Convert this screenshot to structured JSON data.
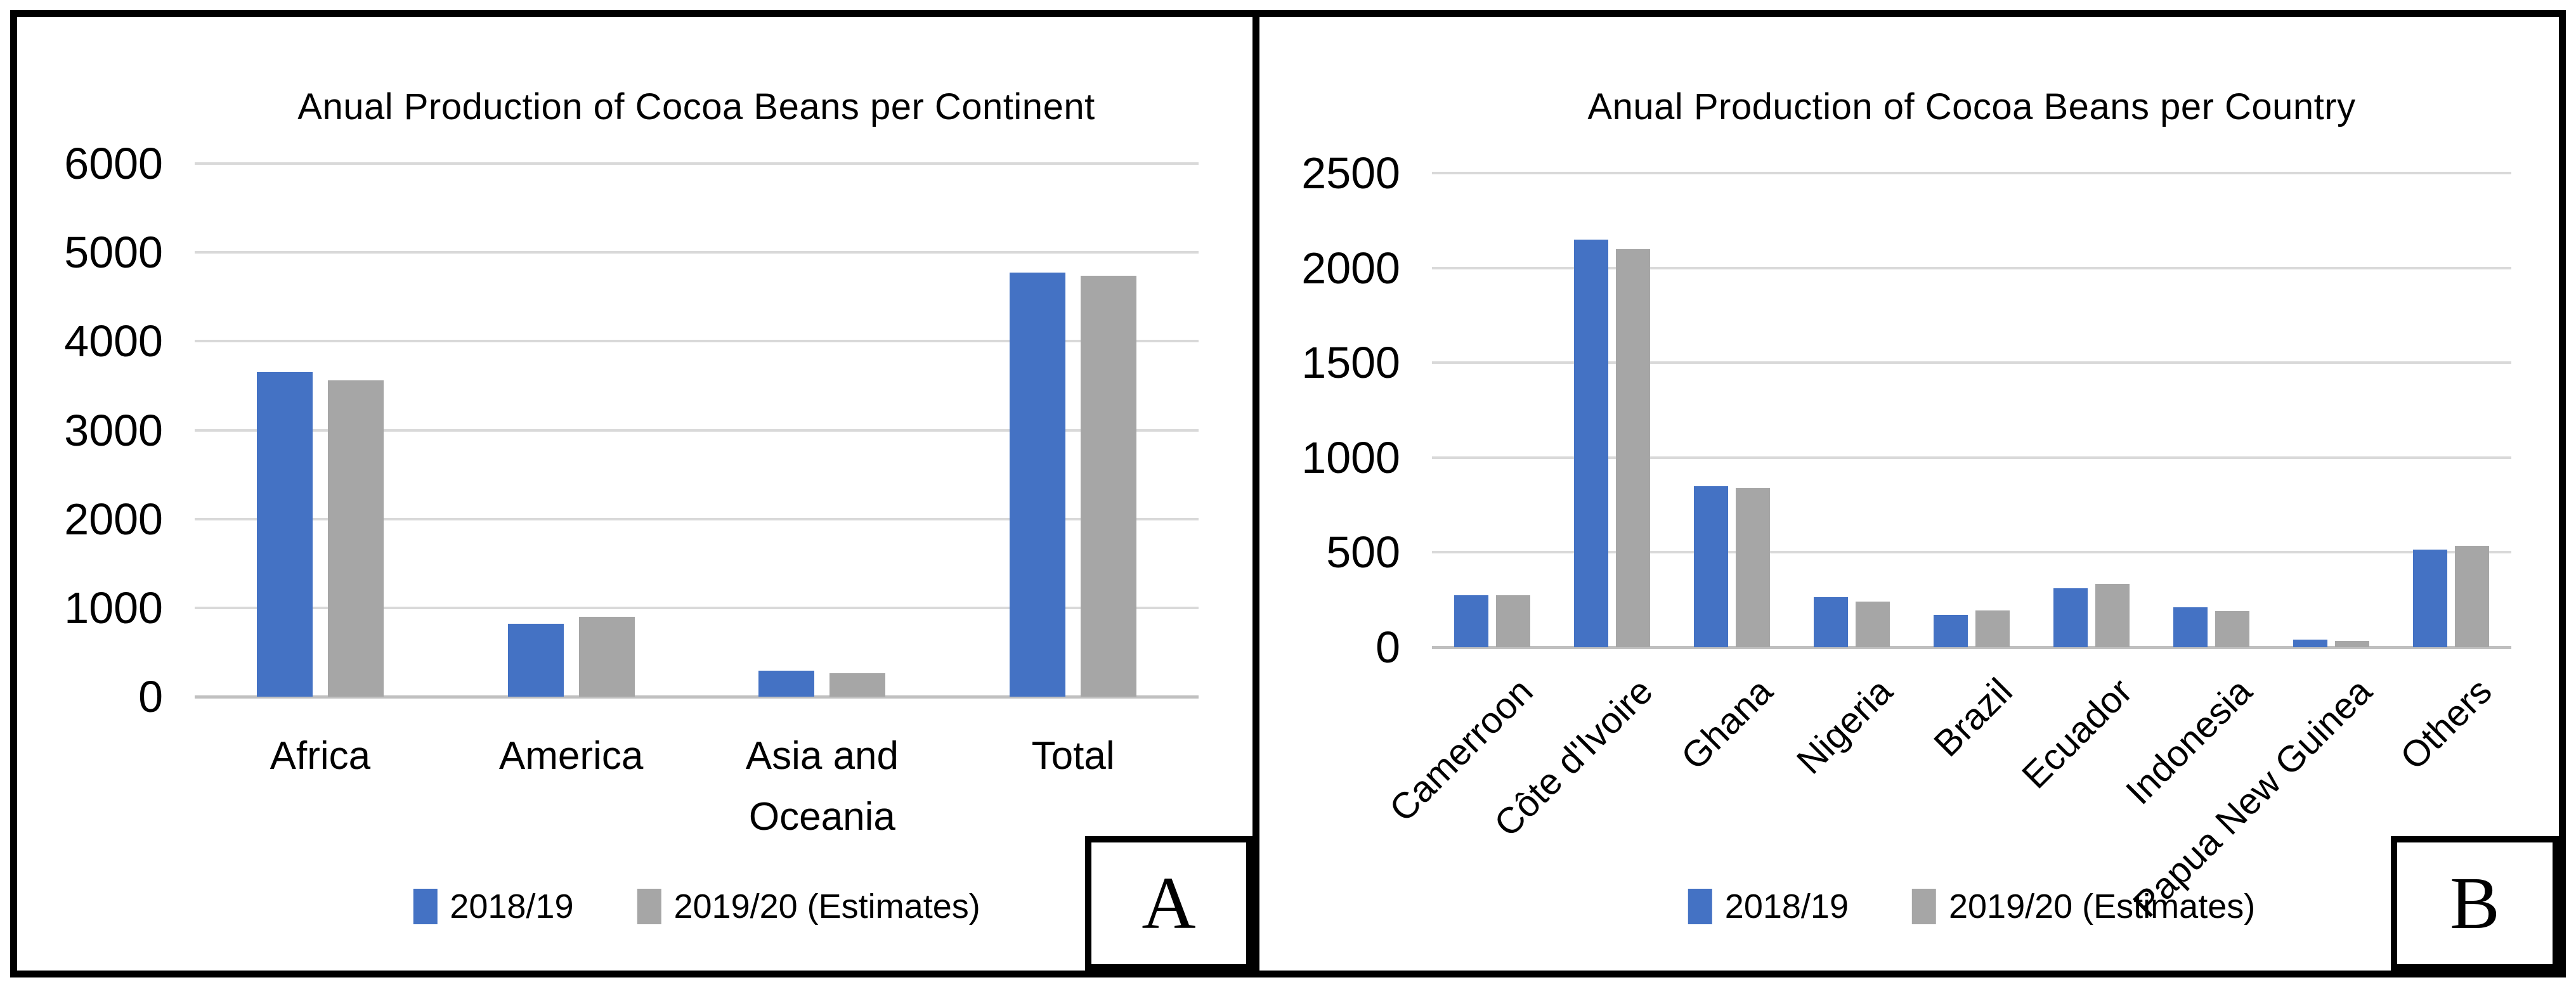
{
  "figure": {
    "background": "#ffffff",
    "border_color": "#000000",
    "gridline_color": "#d9d9d9",
    "axis_line_color": "#c0c0c0"
  },
  "chart_data": [
    {
      "type": "bar",
      "corner_label": "A",
      "title": "Anual Production of Cocoa Beans per Continent",
      "categories": [
        "Africa",
        "America",
        "Asia and Oceania",
        "Total"
      ],
      "series": [
        {
          "name": "2018/19",
          "color": "#4472C4",
          "values": [
            3650,
            820,
            290,
            4775
          ]
        },
        {
          "name": "2019/20 (Estimates)",
          "color": "#A6A6A6",
          "values": [
            3560,
            900,
            265,
            4740
          ]
        }
      ],
      "ylim": [
        0,
        6000
      ],
      "ytick_step": 1000,
      "yticks": [
        0,
        1000,
        2000,
        3000,
        4000,
        5000,
        6000
      ],
      "grid": true,
      "legend_position": "bottom",
      "xlabel": "",
      "ylabel": ""
    },
    {
      "type": "bar",
      "corner_label": "B",
      "title": "Anual Production of Cocoa Beans per Country",
      "categories": [
        "Camerroon",
        "Côte d'Ivoire",
        "Ghana",
        "Nigeria",
        "Brazil",
        "Ecuador",
        "Indonesia",
        "Papua New Guinea",
        "Others"
      ],
      "series": [
        {
          "name": "2018/19",
          "color": "#4472C4",
          "values": [
            275,
            2150,
            850,
            265,
            170,
            310,
            210,
            40,
            515
          ]
        },
        {
          "name": "2019/20 (Estimates)",
          "color": "#A6A6A6",
          "values": [
            273,
            2100,
            840,
            240,
            195,
            335,
            190,
            35,
            535
          ]
        }
      ],
      "ylim": [
        0,
        2500
      ],
      "ytick_step": 500,
      "yticks": [
        0,
        500,
        1000,
        1500,
        2000,
        2500
      ],
      "grid": true,
      "legend_position": "bottom",
      "xlabel": "",
      "ylabel": ""
    }
  ]
}
